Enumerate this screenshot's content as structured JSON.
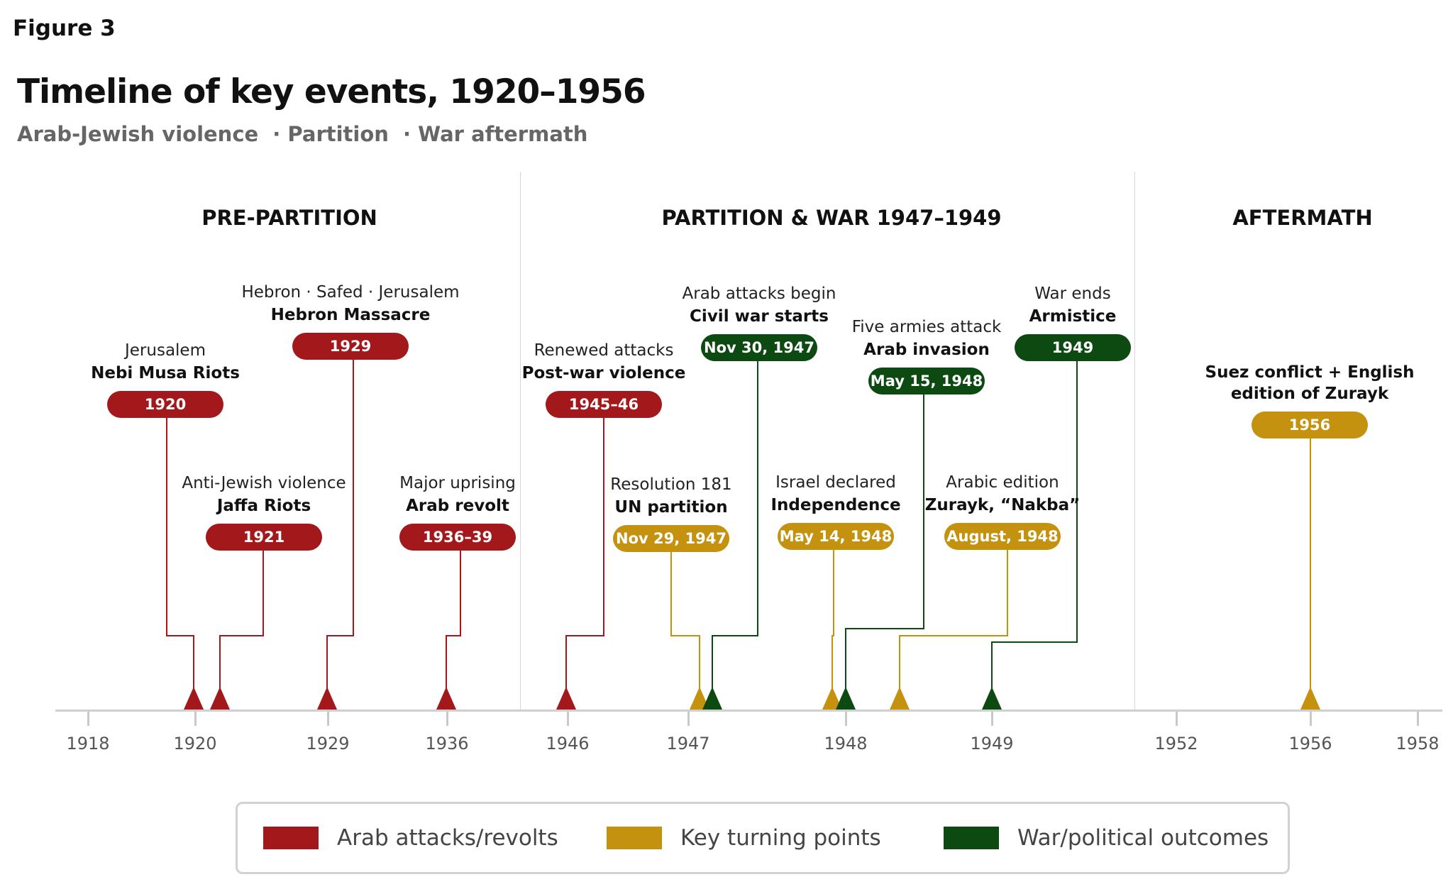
{
  "figure_label": "Figure 3",
  "title": "Timeline of key events, 1920–1956",
  "subtitle": [
    "Arab-Jewish violence",
    "· Partition",
    "· War aftermath"
  ],
  "colors": {
    "red": "#a3181b",
    "gold": "#c4920f",
    "green": "#0c4a12",
    "axis": "#cfcfcf"
  },
  "sections": [
    "PRE-PARTITION",
    "PARTITION  & WAR 1947–1949",
    "AFTERMATH"
  ],
  "axis_ticks": [
    "1918",
    "1920",
    "1929",
    "1936",
    "1946",
    "1947",
    "1948",
    "1949",
    "1952",
    "1956",
    "1958"
  ],
  "events": [
    {
      "sub": "Jerusalem",
      "name": "Nebi Musa Riots",
      "badge": "1920",
      "color": "red"
    },
    {
      "sub": "Anti-Jewish violence",
      "name": "Jaffa Riots",
      "badge": "1921",
      "color": "red"
    },
    {
      "sub": "Hebron · Safed · Jerusalem",
      "name": "Hebron Massacre",
      "badge": "1929",
      "color": "red"
    },
    {
      "sub": "Major uprising",
      "name": "Arab revolt",
      "badge": "1936–39",
      "color": "red"
    },
    {
      "sub": "Renewed attacks",
      "name": "Post-war violence",
      "badge": "1945–46",
      "color": "red"
    },
    {
      "sub": "Resolution 181",
      "name": "UN partition",
      "badge": "Nov 29, 1947",
      "color": "gold"
    },
    {
      "sub": "Arab attacks begin",
      "name": "Civil war starts",
      "badge": "Nov 30, 1947",
      "color": "green"
    },
    {
      "sub": "Israel declared",
      "name": "Independence",
      "badge": "May 14, 1948",
      "color": "gold"
    },
    {
      "sub": "Five armies attack",
      "name": "Arab invasion",
      "badge": "May 15, 1948",
      "color": "green"
    },
    {
      "sub": "Arabic edition",
      "name": "Zurayk, “Nakba”",
      "badge": "August, 1948",
      "color": "gold"
    },
    {
      "sub": "War ends",
      "name": "Armistice",
      "badge": "1949",
      "color": "green"
    },
    {
      "sub": "",
      "name": "Suez conflict + English\nedition of Zurayk",
      "badge": "1956",
      "color": "gold"
    }
  ],
  "legend": [
    {
      "label": "Arab attacks/revolts",
      "color": "red"
    },
    {
      "label": "Key turning points",
      "color": "gold"
    },
    {
      "label": "War/political outcomes",
      "color": "green"
    }
  ]
}
